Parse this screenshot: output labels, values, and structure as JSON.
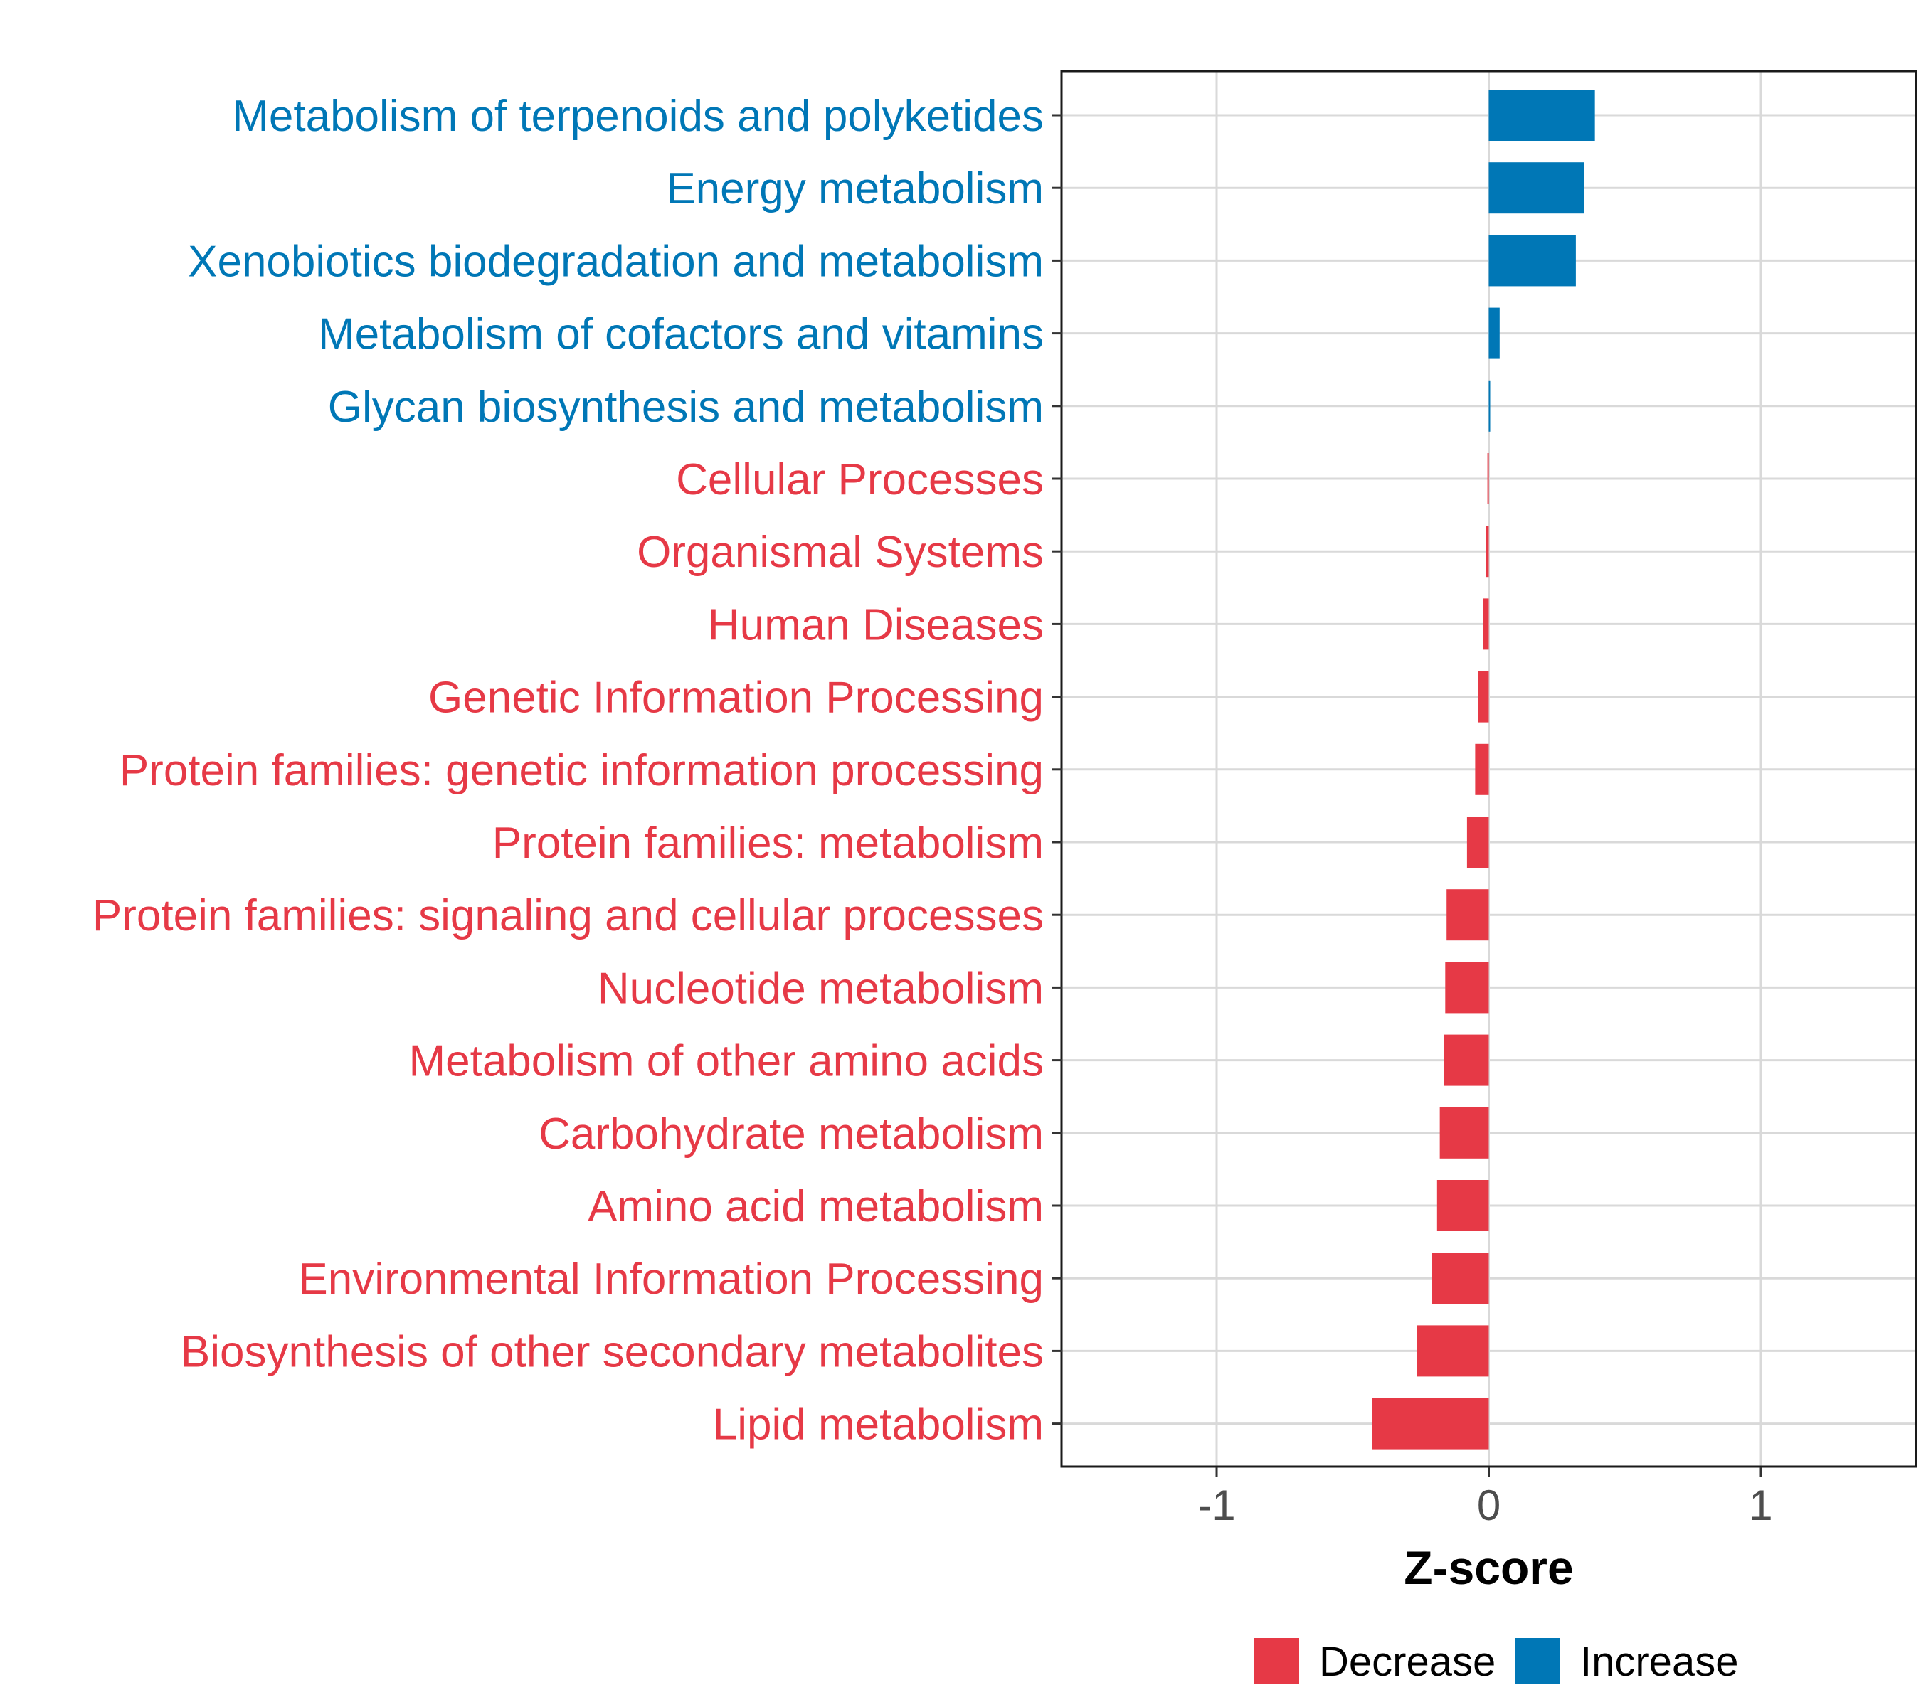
{
  "chart_data": {
    "type": "bar",
    "orientation": "horizontal",
    "title": "",
    "xlabel": "Z-score",
    "ylabel": "",
    "xlim": [
      -1.57,
      1.57
    ],
    "xticks": [
      -1,
      0,
      1
    ],
    "xtick_labels": [
      "-1",
      "0",
      "1"
    ],
    "grid": true,
    "legend_position": "bottom",
    "legend": [
      {
        "key": "Decrease",
        "label": "Decrease",
        "color": "#E63946"
      },
      {
        "key": "Increase",
        "label": "Increase",
        "color": "#0077B6"
      }
    ],
    "bars": [
      {
        "label": "Metabolism of terpenoids and polyketides",
        "value": 0.39,
        "group": "Increase"
      },
      {
        "label": "Energy metabolism",
        "value": 0.35,
        "group": "Increase"
      },
      {
        "label": "Xenobiotics biodegradation and metabolism",
        "value": 0.32,
        "group": "Increase"
      },
      {
        "label": "Metabolism of cofactors and vitamins",
        "value": 0.04,
        "group": "Increase"
      },
      {
        "label": "Glycan biosynthesis and metabolism",
        "value": 0.005,
        "group": "Increase"
      },
      {
        "label": "Cellular Processes",
        "value": -0.005,
        "group": "Decrease"
      },
      {
        "label": "Organismal Systems",
        "value": -0.01,
        "group": "Decrease"
      },
      {
        "label": "Human Diseases",
        "value": -0.02,
        "group": "Decrease"
      },
      {
        "label": "Genetic Information Processing",
        "value": -0.04,
        "group": "Decrease"
      },
      {
        "label": "Protein families: genetic information processing",
        "value": -0.05,
        "group": "Decrease"
      },
      {
        "label": "Protein families: metabolism",
        "value": -0.08,
        "group": "Decrease"
      },
      {
        "label": "Protein families: signaling and cellular processes",
        "value": -0.155,
        "group": "Decrease"
      },
      {
        "label": "Nucleotide metabolism",
        "value": -0.16,
        "group": "Decrease"
      },
      {
        "label": "Metabolism of other amino acids",
        "value": -0.165,
        "group": "Decrease"
      },
      {
        "label": "Carbohydrate metabolism",
        "value": -0.18,
        "group": "Decrease"
      },
      {
        "label": "Amino acid metabolism",
        "value": -0.19,
        "group": "Decrease"
      },
      {
        "label": "Environmental Information Processing",
        "value": -0.21,
        "group": "Decrease"
      },
      {
        "label": "Biosynthesis of other secondary metabolites",
        "value": -0.265,
        "group": "Decrease"
      },
      {
        "label": "Lipid metabolism",
        "value": -0.43,
        "group": "Decrease"
      }
    ]
  }
}
